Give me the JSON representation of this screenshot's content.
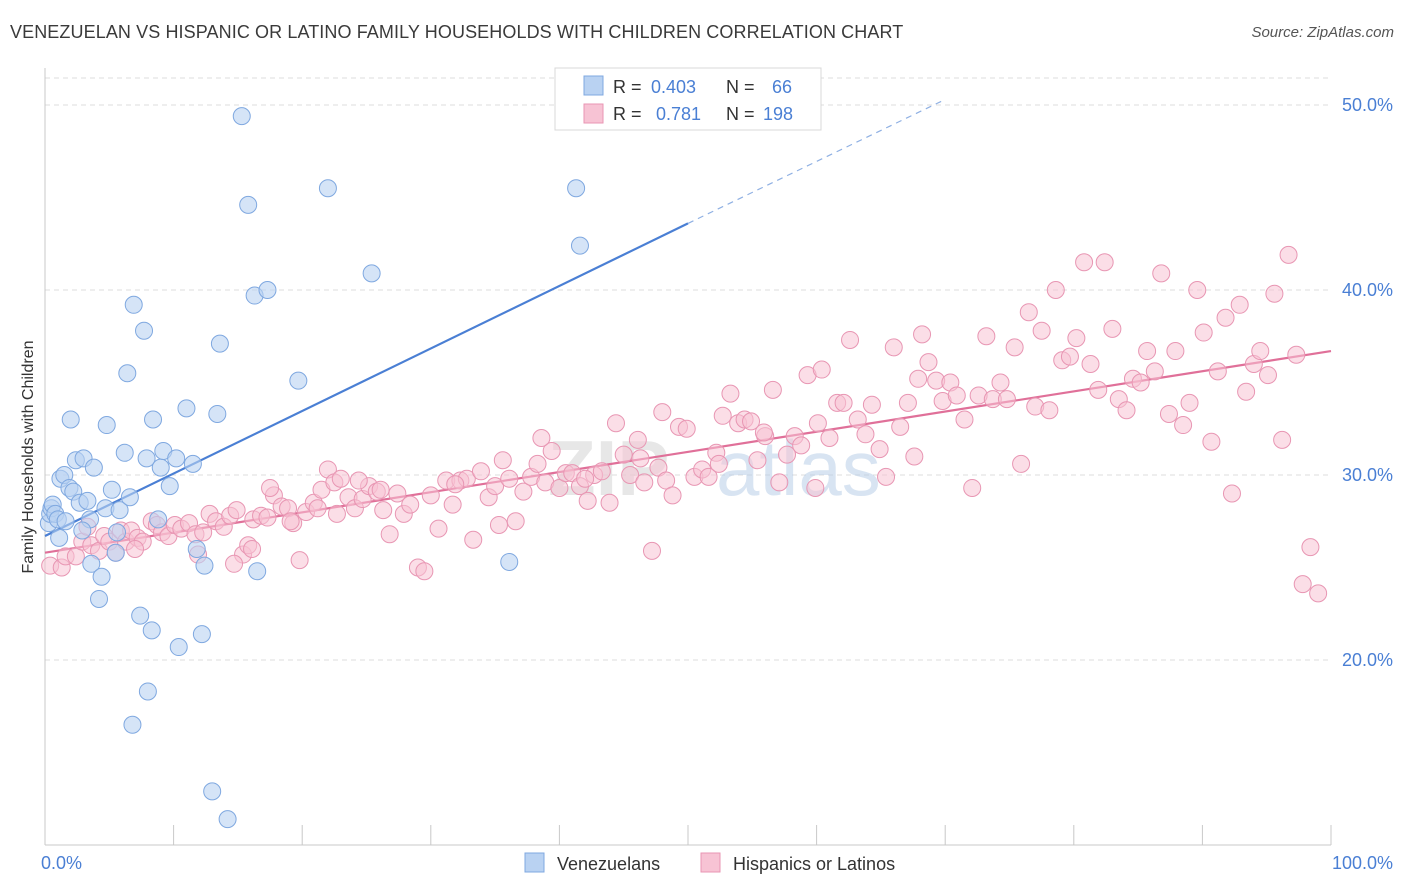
{
  "title": "VENEZUELAN VS HISPANIC OR LATINO FAMILY HOUSEHOLDS WITH CHILDREN CORRELATION CHART",
  "source": "Source: ZipAtlas.com",
  "watermark": {
    "zip": "ZIP",
    "atlas": "atlas"
  },
  "colors": {
    "blue": "#4a7fd4",
    "blue_fill": "#b9d2f2",
    "blue_stroke": "#7fa8e0",
    "pink": "#e07099",
    "pink_fill": "#f7c3d4",
    "pink_stroke": "#e896b3",
    "tick_label": "#4a7fd4",
    "grid": "#dcdcdc"
  },
  "legend_top": {
    "rows": [
      {
        "r_label": "R =",
        "r_value": "0.403",
        "n_label": "N =",
        "n_value": "66"
      },
      {
        "r_label": "R =",
        "r_value": "0.781",
        "n_label": "N =",
        "n_value": "198"
      }
    ]
  },
  "chart_data": {
    "type": "scatter",
    "title": "VENEZUELAN VS HISPANIC OR LATINO FAMILY HOUSEHOLDS WITH CHILDREN CORRELATION CHART",
    "xlabel": "",
    "ylabel": "Family Households with Children",
    "xlim": [
      0,
      100
    ],
    "ylim": [
      10,
      52
    ],
    "x_ticks": [
      0,
      10,
      20,
      30,
      40,
      50,
      60,
      70,
      80,
      90,
      100
    ],
    "x_tick_labels": {
      "0": "0.0%",
      "100": "100.0%"
    },
    "y_ticks": [
      20,
      30,
      40,
      50
    ],
    "y_tick_labels": [
      "20.0%",
      "30.0%",
      "40.0%",
      "50.0%"
    ],
    "grid": true,
    "legend": "bottom-center",
    "series": [
      {
        "name": "Venezuelans",
        "r": 0.403,
        "n": 66,
        "trend": {
          "solid": [
            [
              0,
              26.7
            ],
            [
              50,
              43.6
            ]
          ],
          "dashed": [
            [
              50,
              43.6
            ],
            [
              70,
              50.3
            ]
          ]
        },
        "points": [
          [
            0.3,
            27.4
          ],
          [
            0.4,
            27.9
          ],
          [
            0.5,
            28.2
          ],
          [
            0.6,
            28.4
          ],
          [
            0.8,
            27.9
          ],
          [
            1.0,
            27.6
          ],
          [
            1.2,
            29.8
          ],
          [
            1.5,
            30.0
          ],
          [
            1.6,
            27.5
          ],
          [
            1.9,
            29.3
          ],
          [
            2.0,
            33.0
          ],
          [
            2.2,
            29.1
          ],
          [
            2.4,
            30.8
          ],
          [
            2.7,
            28.5
          ],
          [
            3.0,
            30.9
          ],
          [
            3.3,
            28.6
          ],
          [
            3.5,
            27.6
          ],
          [
            3.8,
            30.4
          ],
          [
            2.9,
            27.0
          ],
          [
            3.6,
            25.2
          ],
          [
            4.2,
            23.3
          ],
          [
            4.4,
            24.5
          ],
          [
            4.7,
            28.2
          ],
          [
            4.8,
            32.7
          ],
          [
            5.2,
            29.2
          ],
          [
            5.5,
            25.8
          ],
          [
            5.6,
            26.9
          ],
          [
            5.8,
            28.1
          ],
          [
            6.2,
            31.2
          ],
          [
            6.4,
            35.5
          ],
          [
            6.6,
            28.8
          ],
          [
            6.9,
            39.2
          ],
          [
            6.8,
            16.5
          ],
          [
            7.4,
            22.4
          ],
          [
            7.7,
            37.8
          ],
          [
            7.9,
            30.9
          ],
          [
            8.0,
            18.3
          ],
          [
            8.3,
            21.6
          ],
          [
            8.4,
            33.0
          ],
          [
            8.8,
            27.6
          ],
          [
            9.0,
            30.4
          ],
          [
            9.2,
            31.3
          ],
          [
            9.7,
            29.4
          ],
          [
            10.2,
            30.9
          ],
          [
            10.4,
            20.7
          ],
          [
            11.0,
            33.6
          ],
          [
            11.5,
            30.6
          ],
          [
            11.8,
            26.0
          ],
          [
            12.2,
            21.4
          ],
          [
            12.4,
            25.1
          ],
          [
            13.0,
            12.9
          ],
          [
            13.4,
            33.3
          ],
          [
            13.6,
            37.1
          ],
          [
            14.2,
            11.4
          ],
          [
            15.3,
            49.4
          ],
          [
            15.8,
            44.6
          ],
          [
            16.3,
            39.7
          ],
          [
            16.5,
            24.8
          ],
          [
            17.3,
            40.0
          ],
          [
            19.7,
            35.1
          ],
          [
            22.0,
            45.5
          ],
          [
            25.4,
            40.9
          ],
          [
            36.1,
            25.3
          ],
          [
            41.3,
            45.5
          ],
          [
            41.6,
            42.4
          ],
          [
            1.1,
            26.6
          ]
        ]
      },
      {
        "name": "Hispanics or Latinos",
        "r": 0.781,
        "n": 198,
        "trend": {
          "solid": [
            [
              0,
              25.8
            ],
            [
              100,
              36.7
            ]
          ]
        },
        "points": [
          [
            0.4,
            25.1
          ],
          [
            1.3,
            25.0
          ],
          [
            1.6,
            25.6
          ],
          [
            2.4,
            25.6
          ],
          [
            2.9,
            26.4
          ],
          [
            3.3,
            27.2
          ],
          [
            3.6,
            26.2
          ],
          [
            4.2,
            25.9
          ],
          [
            4.6,
            26.7
          ],
          [
            5.0,
            26.4
          ],
          [
            5.5,
            25.8
          ],
          [
            5.9,
            27.0
          ],
          [
            6.3,
            26.4
          ],
          [
            6.7,
            27.0
          ],
          [
            7.2,
            26.6
          ],
          [
            7.6,
            26.4
          ],
          [
            8.3,
            27.5
          ],
          [
            8.7,
            27.3
          ],
          [
            9.1,
            26.9
          ],
          [
            9.6,
            26.7
          ],
          [
            10.1,
            27.3
          ],
          [
            10.6,
            27.1
          ],
          [
            11.2,
            27.4
          ],
          [
            11.7,
            26.8
          ],
          [
            12.3,
            26.9
          ],
          [
            12.8,
            27.9
          ],
          [
            13.3,
            27.5
          ],
          [
            13.9,
            27.2
          ],
          [
            14.4,
            27.8
          ],
          [
            14.9,
            28.1
          ],
          [
            15.4,
            25.7
          ],
          [
            15.8,
            26.2
          ],
          [
            16.2,
            27.6
          ],
          [
            16.8,
            27.8
          ],
          [
            17.3,
            27.7
          ],
          [
            17.8,
            28.9
          ],
          [
            18.4,
            28.3
          ],
          [
            18.9,
            28.2
          ],
          [
            19.3,
            27.4
          ],
          [
            19.8,
            25.4
          ],
          [
            20.3,
            28.0
          ],
          [
            20.9,
            28.5
          ],
          [
            21.5,
            29.2
          ],
          [
            22.0,
            30.3
          ],
          [
            22.5,
            29.6
          ],
          [
            23.0,
            29.8
          ],
          [
            23.6,
            28.8
          ],
          [
            24.1,
            28.2
          ],
          [
            24.7,
            28.7
          ],
          [
            25.2,
            29.4
          ],
          [
            25.8,
            29.1
          ],
          [
            26.3,
            28.1
          ],
          [
            26.8,
            26.8
          ],
          [
            27.4,
            29.0
          ],
          [
            27.9,
            27.9
          ],
          [
            28.4,
            28.4
          ],
          [
            29.0,
            25.0
          ],
          [
            29.5,
            24.8
          ],
          [
            30.0,
            28.9
          ],
          [
            30.6,
            27.1
          ],
          [
            31.2,
            29.7
          ],
          [
            31.7,
            28.4
          ],
          [
            32.3,
            29.7
          ],
          [
            32.8,
            29.8
          ],
          [
            33.3,
            26.5
          ],
          [
            33.9,
            30.2
          ],
          [
            34.5,
            28.8
          ],
          [
            35.0,
            29.4
          ],
          [
            35.6,
            30.8
          ],
          [
            36.1,
            29.8
          ],
          [
            36.6,
            27.5
          ],
          [
            37.2,
            29.1
          ],
          [
            37.8,
            29.9
          ],
          [
            38.3,
            30.6
          ],
          [
            38.9,
            29.6
          ],
          [
            39.4,
            31.3
          ],
          [
            40.0,
            29.3
          ],
          [
            40.5,
            30.1
          ],
          [
            41.0,
            30.1
          ],
          [
            41.6,
            29.4
          ],
          [
            42.2,
            28.6
          ],
          [
            42.7,
            30.0
          ],
          [
            43.3,
            30.2
          ],
          [
            43.9,
            28.5
          ],
          [
            44.4,
            32.8
          ],
          [
            45.0,
            31.1
          ],
          [
            45.5,
            30.0
          ],
          [
            46.1,
            31.9
          ],
          [
            46.6,
            29.6
          ],
          [
            47.2,
            25.9
          ],
          [
            47.7,
            30.4
          ],
          [
            48.3,
            29.7
          ],
          [
            48.8,
            28.9
          ],
          [
            49.3,
            32.6
          ],
          [
            49.9,
            32.5
          ],
          [
            50.5,
            29.9
          ],
          [
            51.1,
            30.3
          ],
          [
            51.6,
            29.9
          ],
          [
            52.2,
            31.2
          ],
          [
            52.7,
            33.2
          ],
          [
            53.3,
            34.4
          ],
          [
            53.9,
            32.8
          ],
          [
            54.4,
            33.0
          ],
          [
            54.9,
            32.9
          ],
          [
            55.4,
            30.8
          ],
          [
            56.0,
            32.1
          ],
          [
            56.6,
            34.6
          ],
          [
            57.1,
            29.6
          ],
          [
            57.7,
            31.1
          ],
          [
            58.3,
            32.1
          ],
          [
            58.8,
            31.6
          ],
          [
            59.3,
            35.4
          ],
          [
            59.9,
            29.3
          ],
          [
            60.4,
            35.7
          ],
          [
            61.0,
            32.0
          ],
          [
            61.6,
            33.9
          ],
          [
            62.1,
            33.9
          ],
          [
            62.6,
            37.3
          ],
          [
            63.2,
            33.0
          ],
          [
            63.8,
            32.2
          ],
          [
            64.3,
            33.8
          ],
          [
            64.9,
            31.4
          ],
          [
            65.4,
            29.9
          ],
          [
            66.0,
            36.9
          ],
          [
            66.5,
            32.6
          ],
          [
            67.1,
            33.9
          ],
          [
            67.6,
            31.0
          ],
          [
            68.2,
            37.6
          ],
          [
            68.7,
            36.1
          ],
          [
            69.3,
            35.1
          ],
          [
            69.8,
            34.0
          ],
          [
            70.4,
            35.0
          ],
          [
            70.9,
            34.3
          ],
          [
            71.5,
            33.0
          ],
          [
            72.1,
            29.3
          ],
          [
            72.6,
            34.3
          ],
          [
            73.2,
            37.5
          ],
          [
            73.7,
            34.1
          ],
          [
            74.3,
            35.0
          ],
          [
            74.8,
            34.1
          ],
          [
            75.4,
            36.9
          ],
          [
            75.9,
            30.6
          ],
          [
            76.5,
            38.8
          ],
          [
            77.0,
            33.7
          ],
          [
            77.5,
            37.8
          ],
          [
            78.1,
            33.5
          ],
          [
            78.6,
            40.0
          ],
          [
            79.1,
            36.2
          ],
          [
            79.7,
            36.4
          ],
          [
            80.2,
            37.4
          ],
          [
            80.8,
            41.5
          ],
          [
            81.3,
            36.0
          ],
          [
            81.9,
            34.6
          ],
          [
            82.4,
            41.5
          ],
          [
            83.0,
            37.9
          ],
          [
            83.5,
            34.1
          ],
          [
            84.1,
            33.5
          ],
          [
            84.6,
            35.2
          ],
          [
            85.2,
            35.0
          ],
          [
            85.7,
            36.7
          ],
          [
            86.3,
            35.6
          ],
          [
            86.8,
            40.9
          ],
          [
            87.4,
            33.3
          ],
          [
            87.9,
            36.7
          ],
          [
            88.5,
            32.7
          ],
          [
            89.0,
            33.9
          ],
          [
            89.6,
            40.0
          ],
          [
            90.1,
            37.7
          ],
          [
            90.7,
            31.8
          ],
          [
            91.2,
            35.6
          ],
          [
            91.8,
            38.5
          ],
          [
            92.3,
            29.0
          ],
          [
            92.9,
            39.2
          ],
          [
            93.4,
            34.5
          ],
          [
            94.0,
            36.0
          ],
          [
            94.5,
            36.7
          ],
          [
            95.1,
            35.4
          ],
          [
            95.6,
            39.8
          ],
          [
            96.2,
            31.9
          ],
          [
            96.7,
            41.9
          ],
          [
            97.3,
            36.5
          ],
          [
            97.8,
            24.1
          ],
          [
            98.4,
            26.1
          ],
          [
            99.0,
            23.6
          ],
          [
            7.0,
            26.0
          ],
          [
            11.9,
            25.7
          ],
          [
            14.7,
            25.2
          ],
          [
            16.1,
            26.0
          ],
          [
            17.5,
            29.3
          ],
          [
            19.1,
            27.5
          ],
          [
            21.2,
            28.2
          ],
          [
            22.7,
            27.9
          ],
          [
            24.4,
            29.7
          ],
          [
            26.1,
            29.2
          ],
          [
            31.9,
            29.5
          ],
          [
            35.3,
            27.3
          ],
          [
            38.6,
            32.0
          ],
          [
            42.0,
            29.8
          ],
          [
            46.3,
            30.9
          ],
          [
            48.0,
            33.4
          ],
          [
            52.4,
            30.6
          ],
          [
            55.9,
            32.3
          ],
          [
            60.1,
            32.8
          ],
          [
            67.9,
            35.2
          ]
        ]
      }
    ]
  },
  "legend_bottom": {
    "items": [
      {
        "label": "Venezuelans"
      },
      {
        "label": "Hispanics or Latinos"
      }
    ]
  }
}
